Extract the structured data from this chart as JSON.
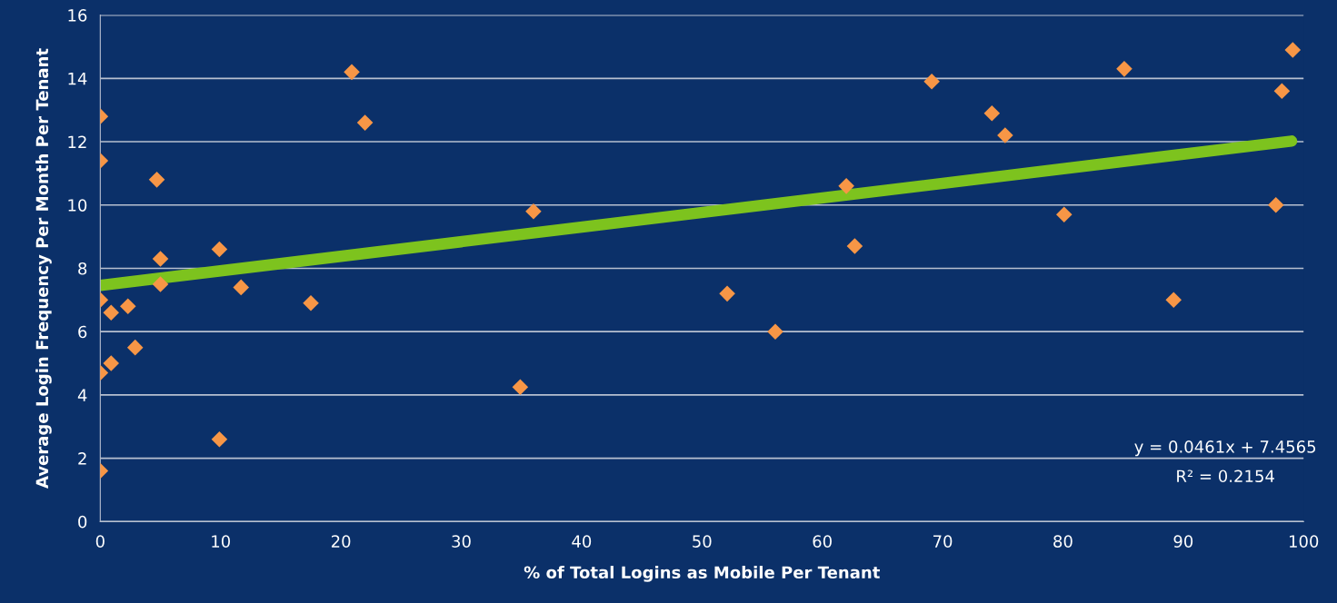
{
  "chart_data": {
    "type": "scatter",
    "xlabel": "% of Total Logins as Mobile Per Tenant",
    "ylabel": "Average Login Frequency Per Month Per Tenant",
    "xlim": [
      0,
      100
    ],
    "xticks": [
      0,
      10,
      20,
      30,
      40,
      50,
      60,
      70,
      80,
      90,
      100
    ],
    "ylim": [
      0,
      16
    ],
    "yticks": [
      0,
      2,
      4,
      6,
      8,
      10,
      12,
      14,
      16
    ],
    "grid": "y",
    "series": [
      {
        "color": "#f79646",
        "marker": "diamond",
        "x": [
          0,
          0,
          0,
          0,
          0,
          0.9,
          0.9,
          2.3,
          2.9,
          4.7,
          5.0,
          5.0,
          9.9,
          9.9,
          11.7,
          17.5,
          20.9,
          22.0,
          34.9,
          36.0,
          52.1,
          56.1,
          62.0,
          62.7,
          69.1,
          74.1,
          75.2,
          80.1,
          85.1,
          89.2,
          97.7,
          98.2,
          99.1
        ],
        "values": [
          12.8,
          11.4,
          7.0,
          4.7,
          1.6,
          6.6,
          5.0,
          6.8,
          5.5,
          10.8,
          8.3,
          7.5,
          8.6,
          2.6,
          7.4,
          6.9,
          14.2,
          12.6,
          4.25,
          9.8,
          7.2,
          6.0,
          10.6,
          8.7,
          13.9,
          12.9,
          12.2,
          9.7,
          14.3,
          7.0,
          10.0,
          13.6,
          14.9
        ]
      },
      {
        "type": "line",
        "color": "#7dc31e",
        "marker": "none",
        "x": [
          0,
          99
        ],
        "values": [
          7.46,
          12.02
        ]
      }
    ],
    "annotations": [
      {
        "text": "y = 0.0461x + 7.4565"
      },
      {
        "text": "R² = 0.2154"
      }
    ]
  }
}
